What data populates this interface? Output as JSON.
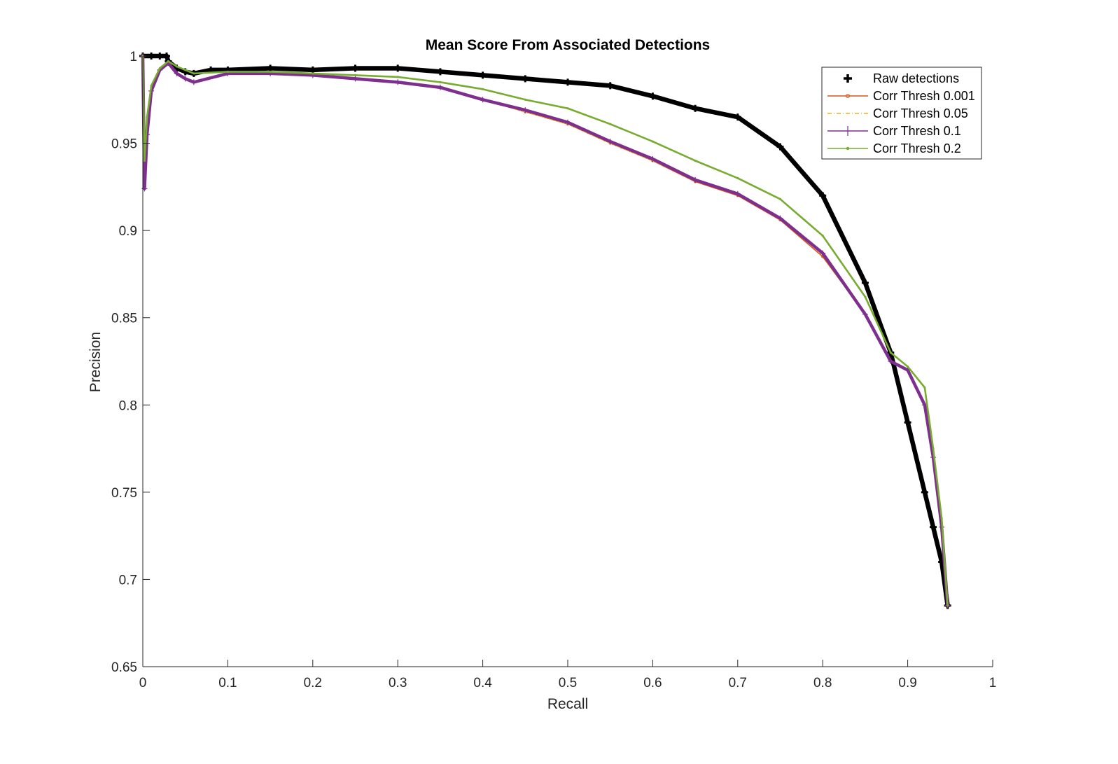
{
  "chart_data": {
    "type": "line",
    "title": "Mean Score From Associated Detections",
    "xlabel": "Recall",
    "ylabel": "Precision",
    "xlim": [
      0,
      1
    ],
    "ylim": [
      0.65,
      1
    ],
    "xticks": [
      "0",
      "0.1",
      "0.2",
      "0.3",
      "0.4",
      "0.5",
      "0.6",
      "0.7",
      "0.8",
      "0.9",
      "1"
    ],
    "yticks": [
      "0.65",
      "0.7",
      "0.75",
      "0.8",
      "0.85",
      "0.9",
      "0.95",
      "1"
    ],
    "grid": false,
    "legend_position": "top-right",
    "series": [
      {
        "name": "Raw detections",
        "color": "#000000",
        "marker": "plus",
        "x": [
          0.0,
          0.01,
          0.02,
          0.028,
          0.03,
          0.04,
          0.05,
          0.06,
          0.08,
          0.1,
          0.15,
          0.2,
          0.25,
          0.3,
          0.35,
          0.4,
          0.45,
          0.5,
          0.55,
          0.6,
          0.65,
          0.7,
          0.75,
          0.8,
          0.85,
          0.88,
          0.9,
          0.92,
          0.93,
          0.94,
          0.947
        ],
        "y": [
          1.0,
          1.0,
          1.0,
          1.0,
          0.997,
          0.993,
          0.991,
          0.99,
          0.992,
          0.992,
          0.993,
          0.992,
          0.993,
          0.993,
          0.991,
          0.989,
          0.987,
          0.985,
          0.983,
          0.977,
          0.97,
          0.965,
          0.948,
          0.92,
          0.87,
          0.83,
          0.79,
          0.75,
          0.73,
          0.71,
          0.685
        ]
      },
      {
        "name": "Corr Thresh 0.001",
        "color": "#D95319",
        "marker": "circle",
        "x": [
          0.0,
          0.002,
          0.005,
          0.01,
          0.02,
          0.03,
          0.04,
          0.05,
          0.06,
          0.1,
          0.15,
          0.2,
          0.25,
          0.3,
          0.35,
          0.4,
          0.45,
          0.5,
          0.55,
          0.6,
          0.65,
          0.7,
          0.75,
          0.8,
          0.85,
          0.88,
          0.9,
          0.92,
          0.93,
          0.94,
          0.947
        ],
        "y": [
          1.0,
          0.93,
          0.96,
          0.98,
          0.992,
          0.996,
          0.99,
          0.987,
          0.985,
          0.99,
          0.99,
          0.989,
          0.987,
          0.985,
          0.982,
          0.975,
          0.968,
          0.961,
          0.95,
          0.94,
          0.928,
          0.92,
          0.906,
          0.885,
          0.852,
          0.825,
          0.82,
          0.8,
          0.77,
          0.73,
          0.685
        ]
      },
      {
        "name": "Corr Thresh 0.05",
        "color": "#EDB120",
        "marker": "none",
        "x": [
          0.0,
          0.002,
          0.005,
          0.01,
          0.02,
          0.03,
          0.04,
          0.05,
          0.06,
          0.1,
          0.15,
          0.2,
          0.25,
          0.3,
          0.35,
          0.4,
          0.45,
          0.5,
          0.55,
          0.6,
          0.65,
          0.7,
          0.75,
          0.8,
          0.85,
          0.88,
          0.9,
          0.92,
          0.93,
          0.94,
          0.947
        ],
        "y": [
          1.0,
          0.93,
          0.96,
          0.98,
          0.992,
          0.996,
          0.99,
          0.987,
          0.985,
          0.99,
          0.99,
          0.989,
          0.987,
          0.985,
          0.982,
          0.975,
          0.968,
          0.961,
          0.95,
          0.94,
          0.929,
          0.921,
          0.907,
          0.886,
          0.852,
          0.825,
          0.82,
          0.8,
          0.77,
          0.73,
          0.685
        ]
      },
      {
        "name": "Corr Thresh 0.1",
        "color": "#7E2F8E",
        "marker": "plus",
        "x": [
          0.0,
          0.002,
          0.005,
          0.01,
          0.02,
          0.03,
          0.04,
          0.05,
          0.06,
          0.1,
          0.15,
          0.2,
          0.25,
          0.3,
          0.35,
          0.4,
          0.45,
          0.5,
          0.55,
          0.6,
          0.65,
          0.7,
          0.75,
          0.8,
          0.85,
          0.88,
          0.9,
          0.92,
          0.93,
          0.94,
          0.947
        ],
        "y": [
          1.0,
          0.924,
          0.955,
          0.98,
          0.992,
          0.996,
          0.99,
          0.987,
          0.985,
          0.99,
          0.99,
          0.989,
          0.987,
          0.985,
          0.982,
          0.975,
          0.969,
          0.962,
          0.951,
          0.941,
          0.929,
          0.921,
          0.907,
          0.887,
          0.852,
          0.825,
          0.82,
          0.8,
          0.77,
          0.73,
          0.685
        ]
      },
      {
        "name": "Corr Thresh 0.2",
        "color": "#77AC30",
        "marker": "dot",
        "x": [
          0.0,
          0.002,
          0.005,
          0.01,
          0.02,
          0.03,
          0.04,
          0.05,
          0.06,
          0.1,
          0.15,
          0.2,
          0.25,
          0.3,
          0.35,
          0.4,
          0.45,
          0.5,
          0.55,
          0.6,
          0.65,
          0.7,
          0.75,
          0.8,
          0.85,
          0.88,
          0.9,
          0.92,
          0.93,
          0.94,
          0.947
        ],
        "y": [
          1.0,
          0.94,
          0.965,
          0.983,
          0.993,
          0.997,
          0.994,
          0.992,
          0.99,
          0.991,
          0.991,
          0.99,
          0.989,
          0.988,
          0.985,
          0.981,
          0.975,
          0.97,
          0.961,
          0.951,
          0.94,
          0.93,
          0.918,
          0.897,
          0.862,
          0.83,
          0.822,
          0.81,
          0.775,
          0.735,
          0.685
        ]
      }
    ]
  }
}
